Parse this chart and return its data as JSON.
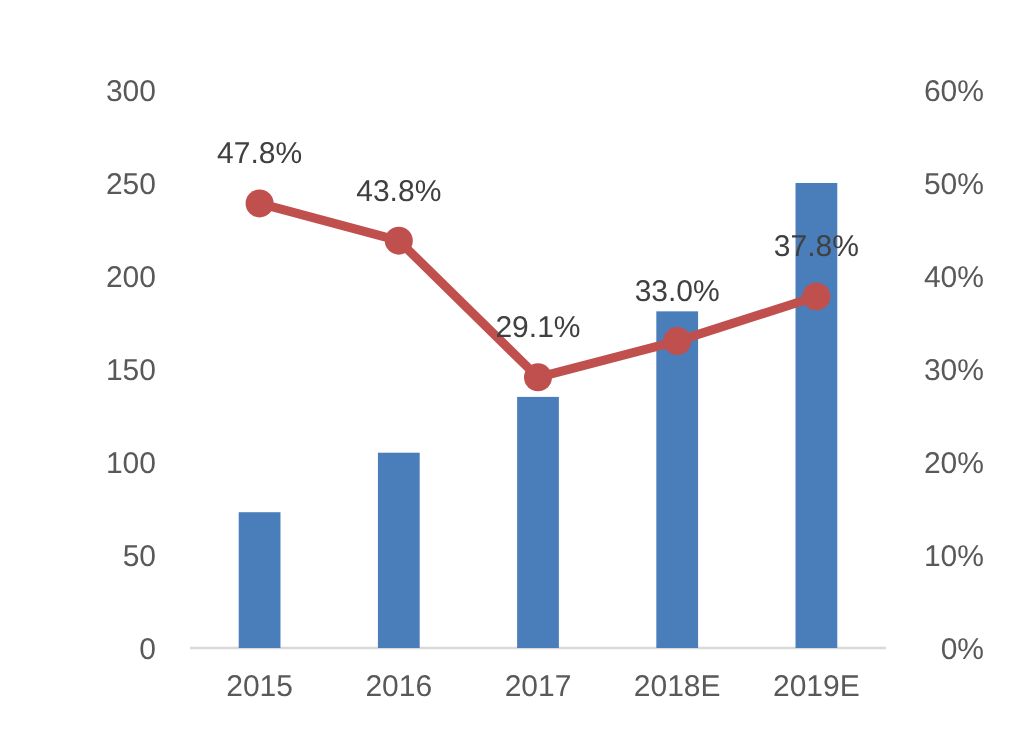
{
  "chart_data": {
    "type": "bar",
    "categories": [
      "2015",
      "2016",
      "2017",
      "2018E",
      "2019E"
    ],
    "series": [
      {
        "color": "#4a7ebb",
        "values": [
          73,
          105,
          135,
          181,
          250
        ]
      },
      {
        "type": "line",
        "axis": "y2",
        "color": "#c0504d",
        "values": [
          47.8,
          43.8,
          29.1,
          33.0,
          37.8
        ],
        "value_labels": [
          "47.8%",
          "43.8%",
          "29.1%",
          "33.0%",
          "37.8%"
        ],
        "marker": "circle"
      }
    ],
    "ylim": [
      0,
      300
    ],
    "yticks": [
      0,
      50,
      100,
      150,
      200,
      250,
      300
    ],
    "y2lim": [
      0,
      60
    ],
    "y2ticks": [
      {
        "value": 0,
        "label": "0%"
      },
      {
        "value": 10,
        "label": "10%"
      },
      {
        "value": 20,
        "label": "20%"
      },
      {
        "value": 30,
        "label": "30%"
      },
      {
        "value": 40,
        "label": "40%"
      },
      {
        "value": 50,
        "label": "50%"
      },
      {
        "value": 60,
        "label": "60%"
      }
    ],
    "grid": false
  }
}
